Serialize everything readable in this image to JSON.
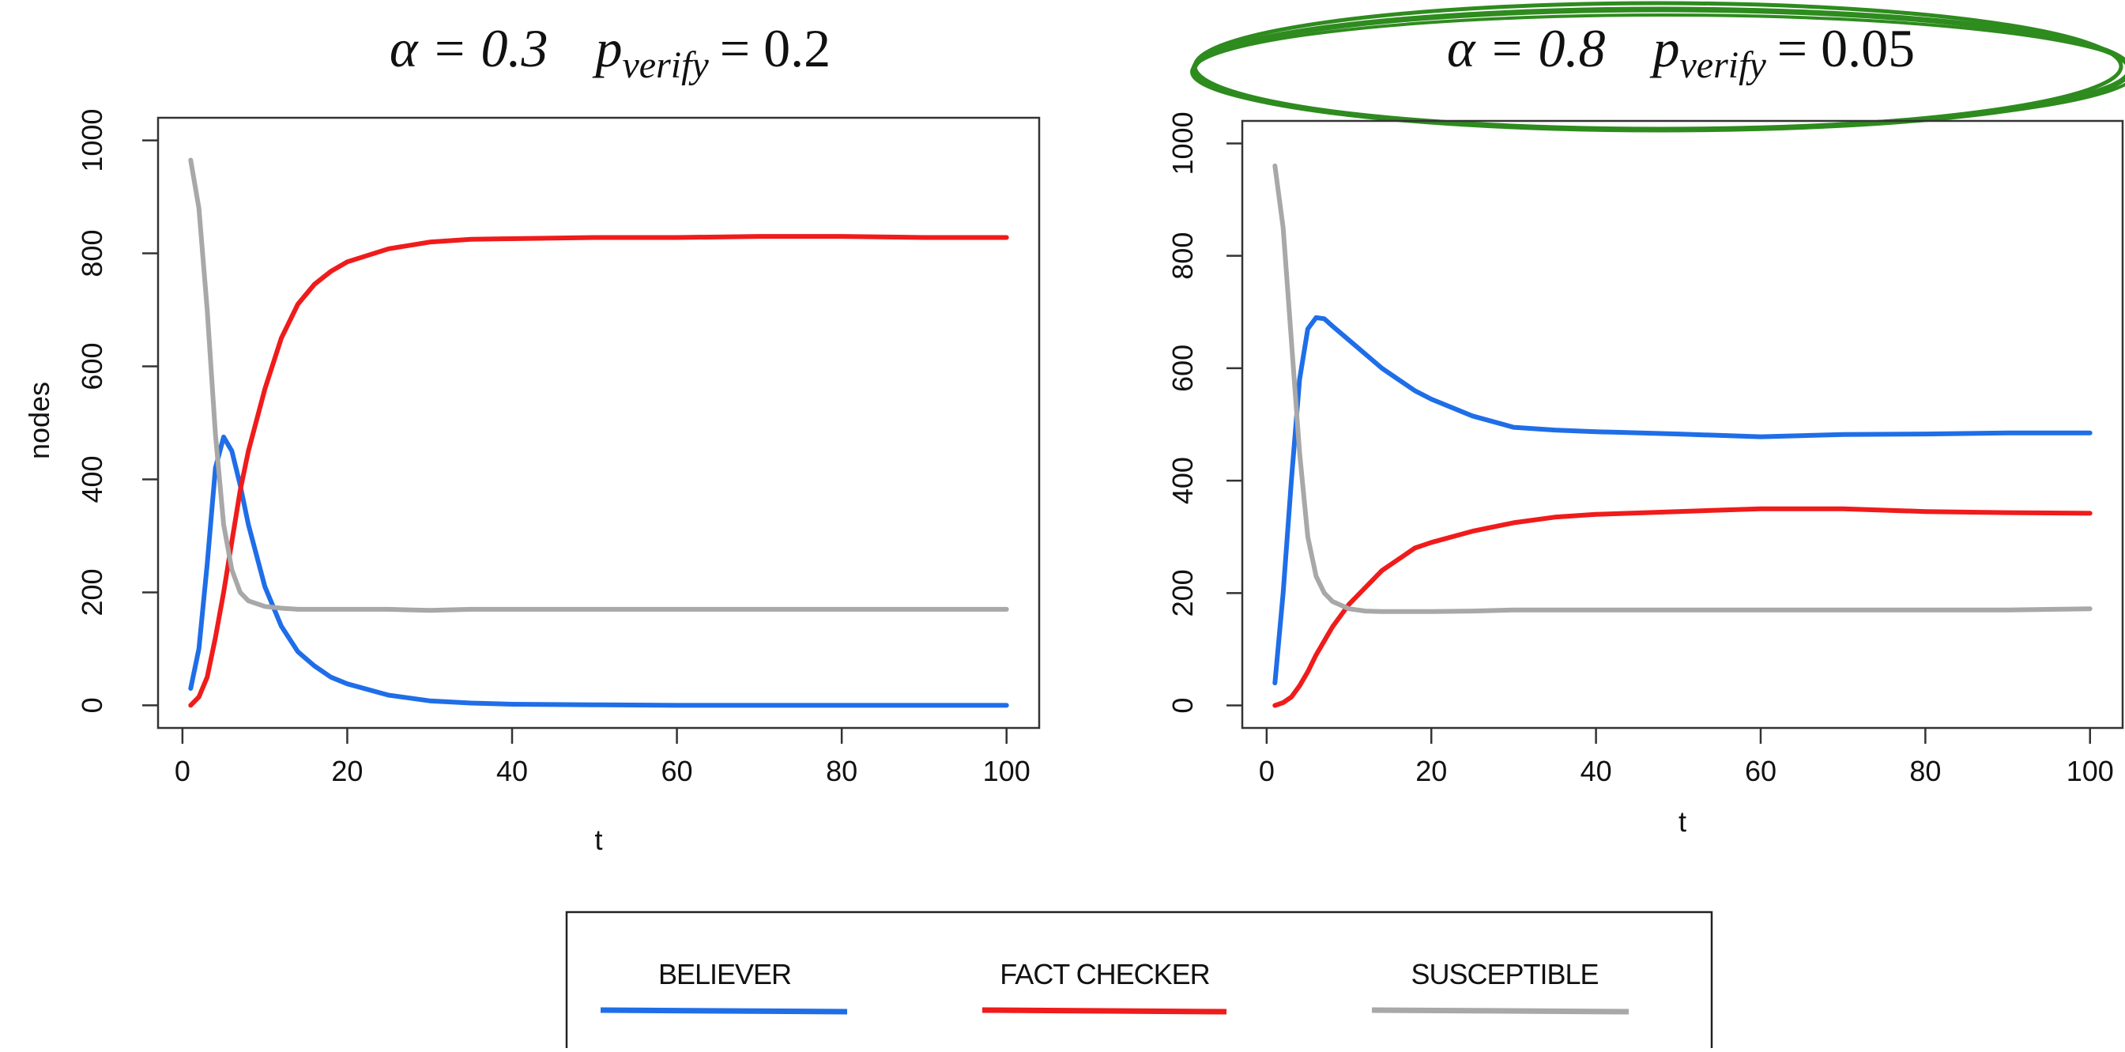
{
  "chart_data": [
    {
      "type": "line",
      "title": {
        "alpha": "α = 0.3",
        "p": "p",
        "subscript": "verify",
        "value": "= 0.2"
      },
      "x_label": "t",
      "y_label": "nodes",
      "x": [
        1,
        2,
        3,
        4,
        5,
        6,
        7,
        8,
        10,
        12,
        14,
        16,
        18,
        20,
        25,
        30,
        35,
        40,
        50,
        60,
        70,
        80,
        90,
        100
      ],
      "xlim": [
        -2.96,
        103.96
      ],
      "xticks": [
        0,
        20,
        40,
        60,
        80,
        100
      ],
      "ylim": [
        -40,
        1040
      ],
      "yticks": [
        0,
        200,
        400,
        600,
        800,
        1000
      ],
      "series": [
        {
          "name": "BELIEVER",
          "color": "#1f6ee8",
          "values": [
            30,
            100,
            250,
            420,
            475,
            450,
            390,
            320,
            210,
            140,
            95,
            70,
            50,
            38,
            18,
            8,
            4,
            2,
            1,
            0,
            0,
            0,
            0,
            0
          ]
        },
        {
          "name": "FACT CHECKER",
          "color": "#f01b1b",
          "values": [
            0,
            15,
            50,
            120,
            200,
            290,
            380,
            450,
            560,
            650,
            710,
            745,
            768,
            785,
            808,
            820,
            825,
            826,
            828,
            828,
            830,
            830,
            828,
            828
          ]
        },
        {
          "name": "SUSCEPTIBLE",
          "color": "#a8a8a8",
          "values": [
            965,
            880,
            700,
            480,
            320,
            240,
            200,
            185,
            175,
            172,
            170,
            170,
            170,
            170,
            170,
            168,
            170,
            170,
            170,
            170,
            170,
            170,
            170,
            170
          ]
        }
      ]
    },
    {
      "type": "line",
      "title": {
        "alpha": "α = 0.8",
        "p": "p",
        "subscript": "verify",
        "value": "= 0.05"
      },
      "x_label": "t",
      "x": [
        1,
        2,
        3,
        4,
        5,
        6,
        7,
        8,
        10,
        12,
        14,
        16,
        18,
        20,
        25,
        30,
        35,
        40,
        50,
        60,
        70,
        80,
        90,
        100
      ],
      "xlim": [
        -2.96,
        103.96
      ],
      "xticks": [
        0,
        20,
        40,
        60,
        80,
        100
      ],
      "ylim": [
        -40,
        1040
      ],
      "yticks": [
        0,
        200,
        400,
        600,
        800,
        1000
      ],
      "series": [
        {
          "name": "BELIEVER",
          "color": "#1f6ee8",
          "values": [
            40,
            200,
            400,
            580,
            670,
            690,
            688,
            675,
            650,
            625,
            600,
            580,
            560,
            545,
            515,
            495,
            490,
            487,
            483,
            478,
            482,
            483,
            485,
            485
          ]
        },
        {
          "name": "FACT CHECKER",
          "color": "#f01b1b",
          "values": [
            0,
            5,
            15,
            35,
            60,
            90,
            115,
            140,
            180,
            210,
            240,
            260,
            280,
            290,
            310,
            325,
            335,
            340,
            345,
            350,
            350,
            345,
            343,
            342
          ]
        },
        {
          "name": "SUSCEPTIBLE",
          "color": "#a8a8a8",
          "values": [
            960,
            850,
            650,
            450,
            300,
            230,
            200,
            185,
            172,
            168,
            167,
            167,
            167,
            167,
            168,
            170,
            170,
            170,
            170,
            170,
            170,
            170,
            170,
            172
          ]
        }
      ]
    }
  ]
}
